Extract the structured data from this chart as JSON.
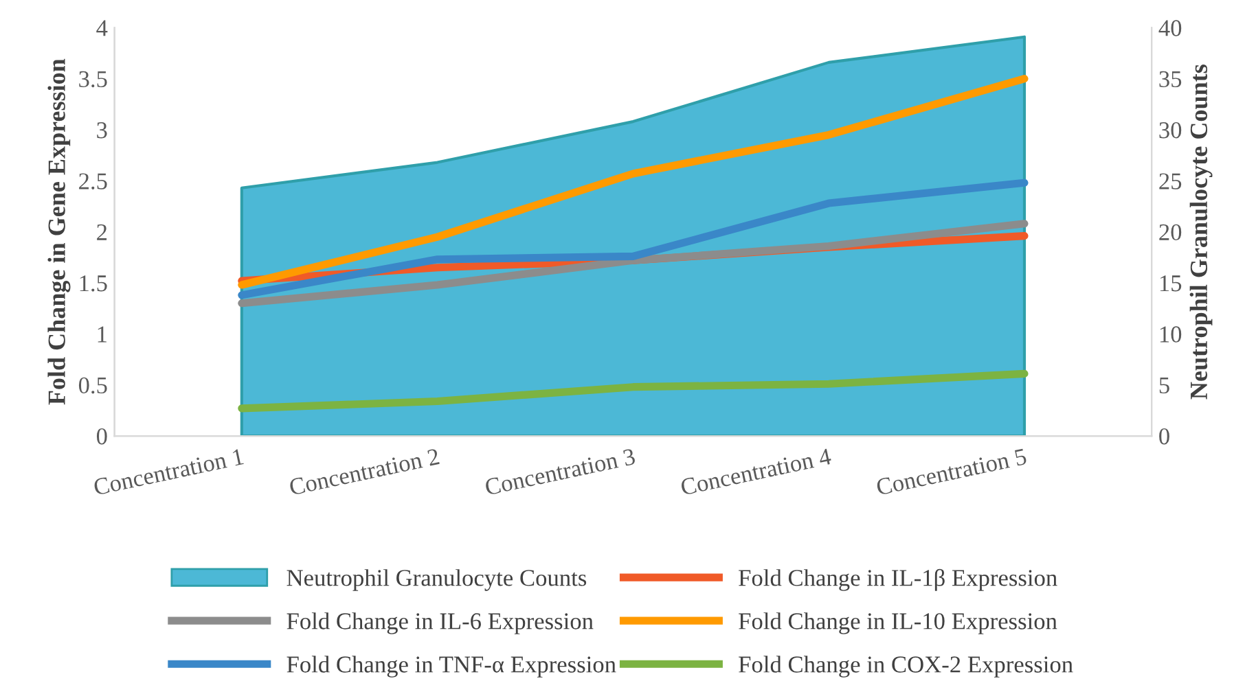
{
  "chart_data": {
    "type": "line",
    "categories": [
      "Concentration 1",
      "Concentration 2",
      "Concentration 3",
      "Concentration 4",
      "Concentration 5"
    ],
    "ylabel": "Fold Change in Gene Expression",
    "y2label": "Neutrophil Granulocyte Counts",
    "ylim": [
      0,
      4
    ],
    "yticks": [
      0,
      0.5,
      1,
      1.5,
      2,
      2.5,
      3,
      3.5,
      4
    ],
    "y2lim": [
      0,
      40
    ],
    "y2ticks": [
      0,
      5,
      10,
      15,
      20,
      25,
      30,
      35,
      40
    ],
    "legend": "bottom",
    "grid": false,
    "series": [
      {
        "name": "Neutrophil Granulocyte Counts",
        "type": "area",
        "axis": "y2",
        "color": "#4cb8d6",
        "values": [
          24.3,
          26.8,
          30.8,
          36.6,
          39.1
        ]
      },
      {
        "name": "Fold Change in IL-1β Expression",
        "color": "#f05a28",
        "values": [
          1.52,
          1.65,
          1.72,
          1.85,
          1.96
        ]
      },
      {
        "name": "Fold Change in IL-6 Expression",
        "color": "#8c8c8c",
        "values": [
          1.3,
          1.48,
          1.72,
          1.86,
          2.08
        ]
      },
      {
        "name": "Fold Change in IL-10 Expression",
        "color": "#ff9a00",
        "values": [
          1.48,
          1.95,
          2.57,
          2.95,
          3.5
        ]
      },
      {
        "name": "Fold Change in TNF-α Expression",
        "color": "#3a87c8",
        "values": [
          1.38,
          1.73,
          1.76,
          2.28,
          2.48
        ]
      },
      {
        "name": "Fold Change in COX-2 Expression",
        "color": "#7cb342",
        "values": [
          0.27,
          0.34,
          0.48,
          0.51,
          0.61
        ]
      }
    ]
  }
}
